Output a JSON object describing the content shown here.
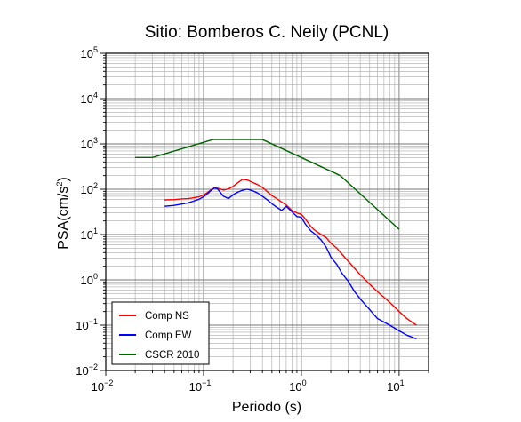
{
  "chart_data": {
    "type": "line",
    "title": "Sitio: Bomberos C. Neily (PCNL)",
    "xlabel": "Periodo (s)",
    "ylabel": "PSA(cm/s²)",
    "ylabel_parts": {
      "base": "PSA(cm/s",
      "sup": "2",
      "close": ")"
    },
    "xscale": "log",
    "yscale": "log",
    "xlim": [
      0.01,
      20
    ],
    "ylim": [
      0.01,
      100000
    ],
    "grid": true,
    "legend_position": "bottom-left",
    "xticks": [
      {
        "base": "10",
        "exp": "−2",
        "value": 0.01
      },
      {
        "base": "10",
        "exp": "−1",
        "value": 0.1
      },
      {
        "base": "10",
        "exp": "0",
        "value": 1
      },
      {
        "base": "10",
        "exp": "1",
        "value": 10
      }
    ],
    "yticks": [
      {
        "base": "10",
        "exp": "−2",
        "value": 0.01
      },
      {
        "base": "10",
        "exp": "−1",
        "value": 0.1
      },
      {
        "base": "10",
        "exp": "0",
        "value": 1
      },
      {
        "base": "10",
        "exp": "1",
        "value": 10
      },
      {
        "base": "10",
        "exp": "2",
        "value": 100
      },
      {
        "base": "10",
        "exp": "3",
        "value": 1000
      },
      {
        "base": "10",
        "exp": "4",
        "value": 10000
      },
      {
        "base": "10",
        "exp": "5",
        "value": 100000
      }
    ],
    "series": [
      {
        "name": "Comp NS",
        "color": "#ff0000",
        "x": [
          0.04,
          0.05,
          0.06,
          0.07,
          0.08,
          0.09,
          0.1,
          0.11,
          0.12,
          0.13,
          0.14,
          0.16,
          0.18,
          0.2,
          0.22,
          0.25,
          0.28,
          0.32,
          0.36,
          0.4,
          0.45,
          0.5,
          0.56,
          0.63,
          0.7,
          0.8,
          0.9,
          1.0,
          1.1,
          1.25,
          1.4,
          1.6,
          1.8,
          2.0,
          2.3,
          2.6,
          3.0,
          3.5,
          4.0,
          5.0,
          6.0,
          8.0,
          10.0,
          12.0,
          15.0
        ],
        "y": [
          58,
          59,
          61,
          62,
          65,
          68,
          75,
          85,
          98,
          108,
          105,
          96,
          102,
          115,
          135,
          165,
          160,
          140,
          125,
          110,
          88,
          72,
          62,
          52,
          45,
          34,
          30,
          28,
          22,
          15,
          12,
          10,
          8.5,
          6.5,
          5.0,
          3.7,
          2.6,
          1.8,
          1.3,
          0.8,
          0.55,
          0.32,
          0.2,
          0.14,
          0.1
        ]
      },
      {
        "name": "Comp EW",
        "color": "#0000ff",
        "x": [
          0.04,
          0.05,
          0.06,
          0.07,
          0.08,
          0.09,
          0.1,
          0.11,
          0.12,
          0.13,
          0.14,
          0.16,
          0.18,
          0.2,
          0.22,
          0.25,
          0.28,
          0.32,
          0.36,
          0.4,
          0.45,
          0.5,
          0.56,
          0.63,
          0.7,
          0.8,
          0.9,
          1.0,
          1.1,
          1.25,
          1.4,
          1.6,
          1.8,
          2.0,
          2.3,
          2.6,
          3.0,
          3.5,
          4.0,
          5.0,
          6.0,
          8.0,
          10.0,
          12.0,
          15.0
        ],
        "y": [
          42,
          44,
          47,
          50,
          55,
          60,
          68,
          80,
          95,
          108,
          100,
          70,
          62,
          75,
          85,
          95,
          100,
          92,
          82,
          70,
          58,
          48,
          40,
          34,
          42,
          32,
          25,
          24,
          17,
          12,
          10,
          7.5,
          5.2,
          3.2,
          2.2,
          1.4,
          0.95,
          0.55,
          0.38,
          0.22,
          0.14,
          0.1,
          0.075,
          0.06,
          0.05
        ]
      },
      {
        "name": "CSCR 2010",
        "color": "#006400",
        "x": [
          0.02,
          0.03,
          0.125,
          0.4,
          2.5,
          10
        ],
        "y": [
          500,
          500,
          1250,
          1250,
          200,
          13
        ]
      }
    ]
  }
}
